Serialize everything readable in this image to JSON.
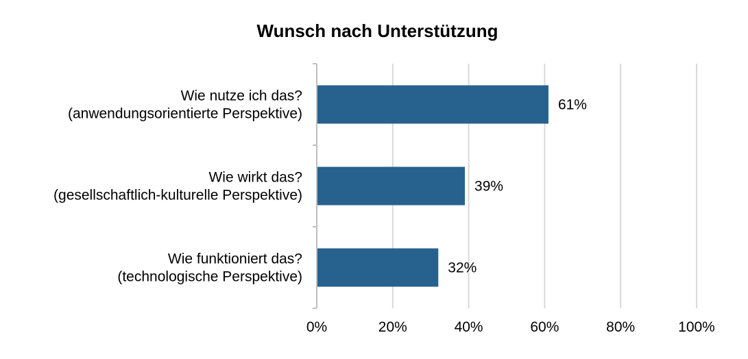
{
  "chart_data": {
    "type": "bar",
    "orientation": "horizontal",
    "title": "Wunsch nach Unterstützung",
    "categories": [
      [
        "Wie nutze ich das?",
        "(anwendungsorientierte Perspektive)"
      ],
      [
        "Wie wirkt das?",
        "(gesellschaftlich-kulturelle Perspektive)"
      ],
      [
        "Wie funktioniert das?",
        "(technologische Perspektive)"
      ]
    ],
    "values": [
      61,
      39,
      32
    ],
    "data_labels": [
      "61%",
      "39%",
      "32%"
    ],
    "xlim": [
      0,
      100
    ],
    "xticks": [
      0,
      20,
      40,
      60,
      80,
      100
    ],
    "xtick_labels": [
      "0%",
      "20%",
      "40%",
      "60%",
      "80%",
      "100%"
    ],
    "grid": true,
    "legend": "none",
    "colors": {
      "bar": "#27628F",
      "grid": "#D9D9D9",
      "axis": "#BFBFBF"
    }
  }
}
